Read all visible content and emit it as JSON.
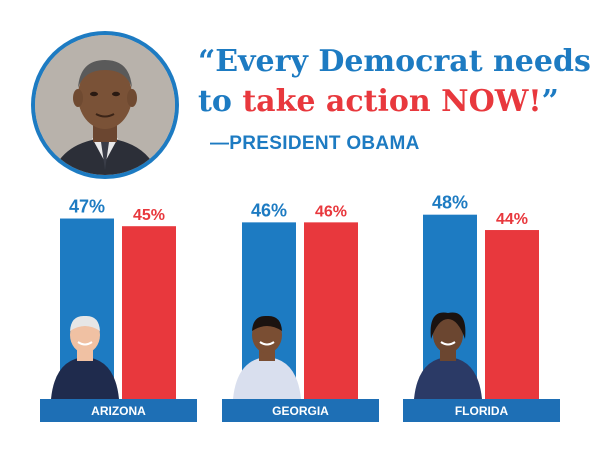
{
  "quote": {
    "part1": "“Every Democrat needs",
    "part2_prefix": "to ",
    "part2_highlight": "take action NOW!",
    "part2_suffix": "”",
    "attribution": "—PRESIDENT OBAMA"
  },
  "colors": {
    "blue": "#1d7bc2",
    "red": "#e8383d",
    "label_bar": "#1e6fb5"
  },
  "chart_data": {
    "type": "bar",
    "categories": [
      "ARIZONA",
      "GEORGIA",
      "FLORIDA"
    ],
    "series": [
      {
        "values": [
          47,
          46,
          48
        ],
        "labels": [
          "47%",
          "46%",
          "48%"
        ],
        "color": "#1d7bc2"
      },
      {
        "values": [
          45,
          46,
          44
        ],
        "labels": [
          "45%",
          "46%",
          "44%"
        ],
        "color": "#e8383d"
      }
    ],
    "ylim": [
      0,
      50
    ]
  }
}
